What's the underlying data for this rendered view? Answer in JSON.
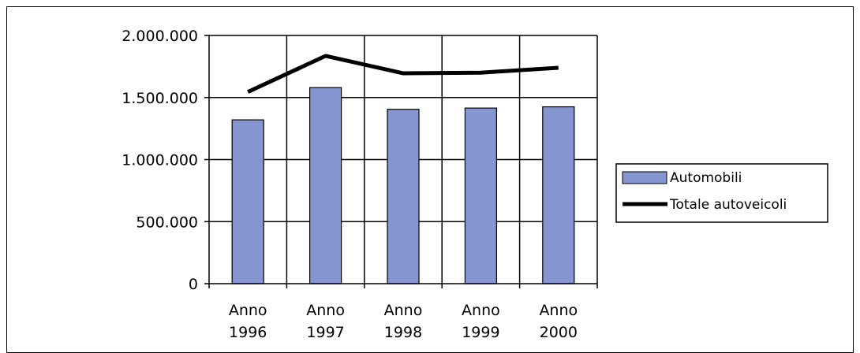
{
  "chart_data": {
    "type": "bar",
    "categories": [
      [
        "Anno",
        "1996"
      ],
      [
        "Anno",
        "1997"
      ],
      [
        "Anno",
        "1998"
      ],
      [
        "Anno",
        "1999"
      ],
      [
        "Anno",
        "2000"
      ]
    ],
    "series": [
      {
        "name": "Automobili",
        "type": "bar",
        "color": "#8595cf",
        "values": [
          1320000,
          1580000,
          1405000,
          1415000,
          1425000
        ]
      },
      {
        "name": "Totale autoveicoli",
        "type": "line",
        "color": "#000000",
        "values": [
          1545000,
          1835000,
          1695000,
          1700000,
          1740000
        ]
      }
    ],
    "ylim": [
      0,
      2000000
    ],
    "yticks": [
      0,
      500000,
      1000000,
      1500000,
      2000000
    ],
    "ytick_labels": [
      "0",
      "500.000",
      "1.000.000",
      "1.500.000",
      "2.000.000"
    ],
    "grid": true,
    "legend": {
      "position": "right",
      "entries": [
        {
          "label": "Automobili",
          "kind": "bar"
        },
        {
          "label": "Totale autoveicoli",
          "kind": "line"
        }
      ]
    },
    "title": "",
    "xlabel": "",
    "ylabel": ""
  }
}
